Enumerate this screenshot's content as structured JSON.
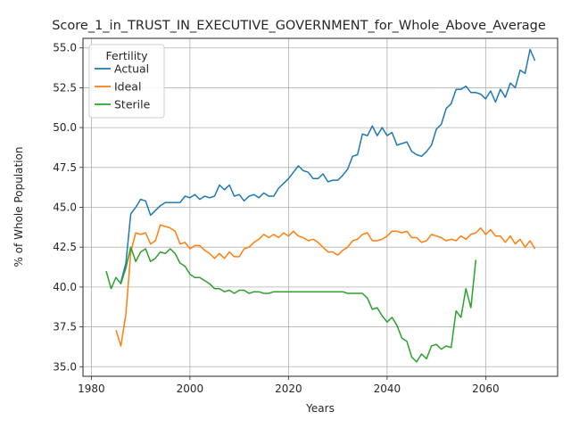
{
  "chart_data": {
    "type": "line",
    "title": "Score_1_in_TRUST_IN_EXECUTIVE_GOVERNMENT_for_Whole_Above_Average",
    "xlabel": "Years",
    "ylabel": "% of Whole Population",
    "xlim": [
      1978.3,
      2074.6
    ],
    "ylim": [
      34.4,
      55.6
    ],
    "xticks": [
      1980,
      2000,
      2020,
      2040,
      2060
    ],
    "yticks": [
      35.0,
      37.5,
      40.0,
      42.5,
      45.0,
      47.5,
      50.0,
      52.5,
      55.0
    ],
    "xtick_labels": [
      "1980",
      "2000",
      "2020",
      "2040",
      "2060"
    ],
    "ytick_labels": [
      "35.0",
      "37.5",
      "40.0",
      "42.5",
      "45.0",
      "47.5",
      "50.0",
      "52.5",
      "55.0"
    ],
    "grid": true,
    "legend": {
      "title": "Fertility",
      "placement": "upper-left"
    },
    "series": [
      {
        "name": "Actual",
        "color": "#1f77b4",
        "x": [
          1986,
          1987,
          1988,
          1989,
          1990,
          1991,
          1992,
          1993,
          1994,
          1995,
          1996,
          1997,
          1998,
          1999,
          2000,
          2001,
          2002,
          2003,
          2004,
          2005,
          2006,
          2007,
          2008,
          2009,
          2010,
          2011,
          2012,
          2013,
          2014,
          2015,
          2016,
          2017,
          2018,
          2019,
          2020,
          2021,
          2022,
          2023,
          2024,
          2025,
          2026,
          2027,
          2028,
          2029,
          2030,
          2031,
          2032,
          2033,
          2034,
          2035,
          2036,
          2037,
          2038,
          2039,
          2040,
          2041,
          2042,
          2043,
          2044,
          2045,
          2046,
          2047,
          2048,
          2049,
          2050,
          2051,
          2052,
          2053,
          2054,
          2055,
          2056,
          2057,
          2058,
          2059,
          2060,
          2061,
          2062,
          2063,
          2064,
          2065,
          2066,
          2067,
          2068,
          2069,
          2070
        ],
        "values": [
          40.3,
          41.5,
          44.6,
          45.0,
          45.5,
          45.4,
          44.5,
          44.8,
          45.1,
          45.3,
          45.3,
          45.3,
          45.3,
          45.7,
          45.6,
          45.8,
          45.5,
          45.7,
          45.6,
          45.7,
          46.4,
          46.1,
          46.4,
          45.7,
          45.8,
          45.4,
          45.7,
          45.8,
          45.6,
          45.9,
          45.7,
          45.7,
          46.2,
          46.5,
          46.8,
          47.2,
          47.6,
          47.3,
          47.2,
          46.8,
          46.8,
          47.1,
          46.6,
          46.7,
          46.7,
          47.0,
          47.4,
          48.2,
          48.3,
          49.6,
          49.5,
          50.1,
          49.5,
          50.0,
          49.5,
          49.7,
          48.9,
          49.0,
          49.1,
          48.5,
          48.3,
          48.2,
          48.5,
          48.9,
          49.9,
          50.2,
          51.2,
          51.5,
          52.4,
          52.4,
          52.6,
          52.2,
          52.2,
          52.1,
          51.8,
          52.3,
          51.6,
          52.4,
          51.9,
          52.8,
          52.5,
          53.6,
          53.4,
          54.9,
          54.2
        ]
      },
      {
        "name": "Ideal",
        "color": "#ff7f0e",
        "x": [
          1985,
          1986,
          1987,
          1988,
          1989,
          1990,
          1991,
          1992,
          1993,
          1994,
          1995,
          1996,
          1997,
          1998,
          1999,
          2000,
          2001,
          2002,
          2003,
          2004,
          2005,
          2006,
          2007,
          2008,
          2009,
          2010,
          2011,
          2012,
          2013,
          2014,
          2015,
          2016,
          2017,
          2018,
          2019,
          2020,
          2021,
          2022,
          2023,
          2024,
          2025,
          2026,
          2027,
          2028,
          2029,
          2030,
          2031,
          2032,
          2033,
          2034,
          2035,
          2036,
          2037,
          2038,
          2039,
          2040,
          2041,
          2042,
          2043,
          2044,
          2045,
          2046,
          2047,
          2048,
          2049,
          2050,
          2051,
          2052,
          2053,
          2054,
          2055,
          2056,
          2057,
          2058,
          2059,
          2060,
          2061,
          2062,
          2063,
          2064,
          2065,
          2066,
          2067,
          2068,
          2069,
          2070
        ],
        "values": [
          37.3,
          36.3,
          38.3,
          42.2,
          43.4,
          43.3,
          43.4,
          42.7,
          42.9,
          43.9,
          43.8,
          43.7,
          43.5,
          42.7,
          42.8,
          42.4,
          42.6,
          42.6,
          42.3,
          42.1,
          41.8,
          42.1,
          41.8,
          42.2,
          41.9,
          41.9,
          42.4,
          42.5,
          42.8,
          43.0,
          43.3,
          43.1,
          43.3,
          43.1,
          43.4,
          43.2,
          43.5,
          43.2,
          43.1,
          42.9,
          43.0,
          42.8,
          42.5,
          42.2,
          42.2,
          42.0,
          42.3,
          42.5,
          42.9,
          43.0,
          43.3,
          43.4,
          42.9,
          42.9,
          43.0,
          43.2,
          43.5,
          43.5,
          43.4,
          43.5,
          43.1,
          43.1,
          42.8,
          42.9,
          43.3,
          43.2,
          43.1,
          42.9,
          43.0,
          42.9,
          43.2,
          43.0,
          43.3,
          43.4,
          43.7,
          43.3,
          43.6,
          43.2,
          43.2,
          42.8,
          43.2,
          42.7,
          43.0,
          42.5,
          42.9,
          42.4
        ]
      },
      {
        "name": "Sterile",
        "color": "#2ca02c",
        "x": [
          1983,
          1984,
          1985,
          1986,
          1987,
          1988,
          1989,
          1990,
          1991,
          1992,
          1993,
          1994,
          1995,
          1996,
          1997,
          1998,
          1999,
          2000,
          2001,
          2002,
          2003,
          2004,
          2005,
          2006,
          2007,
          2008,
          2009,
          2010,
          2011,
          2012,
          2013,
          2014,
          2015,
          2016,
          2017,
          2018,
          2019,
          2020,
          2021,
          2022,
          2023,
          2024,
          2025,
          2026,
          2027,
          2028,
          2029,
          2030,
          2031,
          2032,
          2033,
          2034,
          2035,
          2036,
          2037,
          2038,
          2039,
          2040,
          2041,
          2042,
          2043,
          2044,
          2045,
          2046,
          2047,
          2048,
          2049,
          2050,
          2051,
          2052,
          2053,
          2054,
          2055,
          2056,
          2057,
          2058
        ],
        "values": [
          41.0,
          39.9,
          40.6,
          40.2,
          41.2,
          42.5,
          41.6,
          42.2,
          42.4,
          41.6,
          41.8,
          42.2,
          42.1,
          42.4,
          42.1,
          41.5,
          41.3,
          40.8,
          40.6,
          40.6,
          40.4,
          40.2,
          39.9,
          39.9,
          39.7,
          39.8,
          39.6,
          39.8,
          39.8,
          39.6,
          39.7,
          39.7,
          39.6,
          39.6,
          39.7,
          39.7,
          39.7,
          39.7,
          39.7,
          39.7,
          39.7,
          39.7,
          39.7,
          39.7,
          39.7,
          39.7,
          39.7,
          39.7,
          39.7,
          39.6,
          39.6,
          39.6,
          39.6,
          39.3,
          38.6,
          38.7,
          38.2,
          37.8,
          38.1,
          37.6,
          36.8,
          36.6,
          35.6,
          35.3,
          35.8,
          35.5,
          36.3,
          36.4,
          36.1,
          36.3,
          36.2,
          38.5,
          38.1,
          39.9,
          38.7,
          41.7
        ]
      }
    ]
  }
}
